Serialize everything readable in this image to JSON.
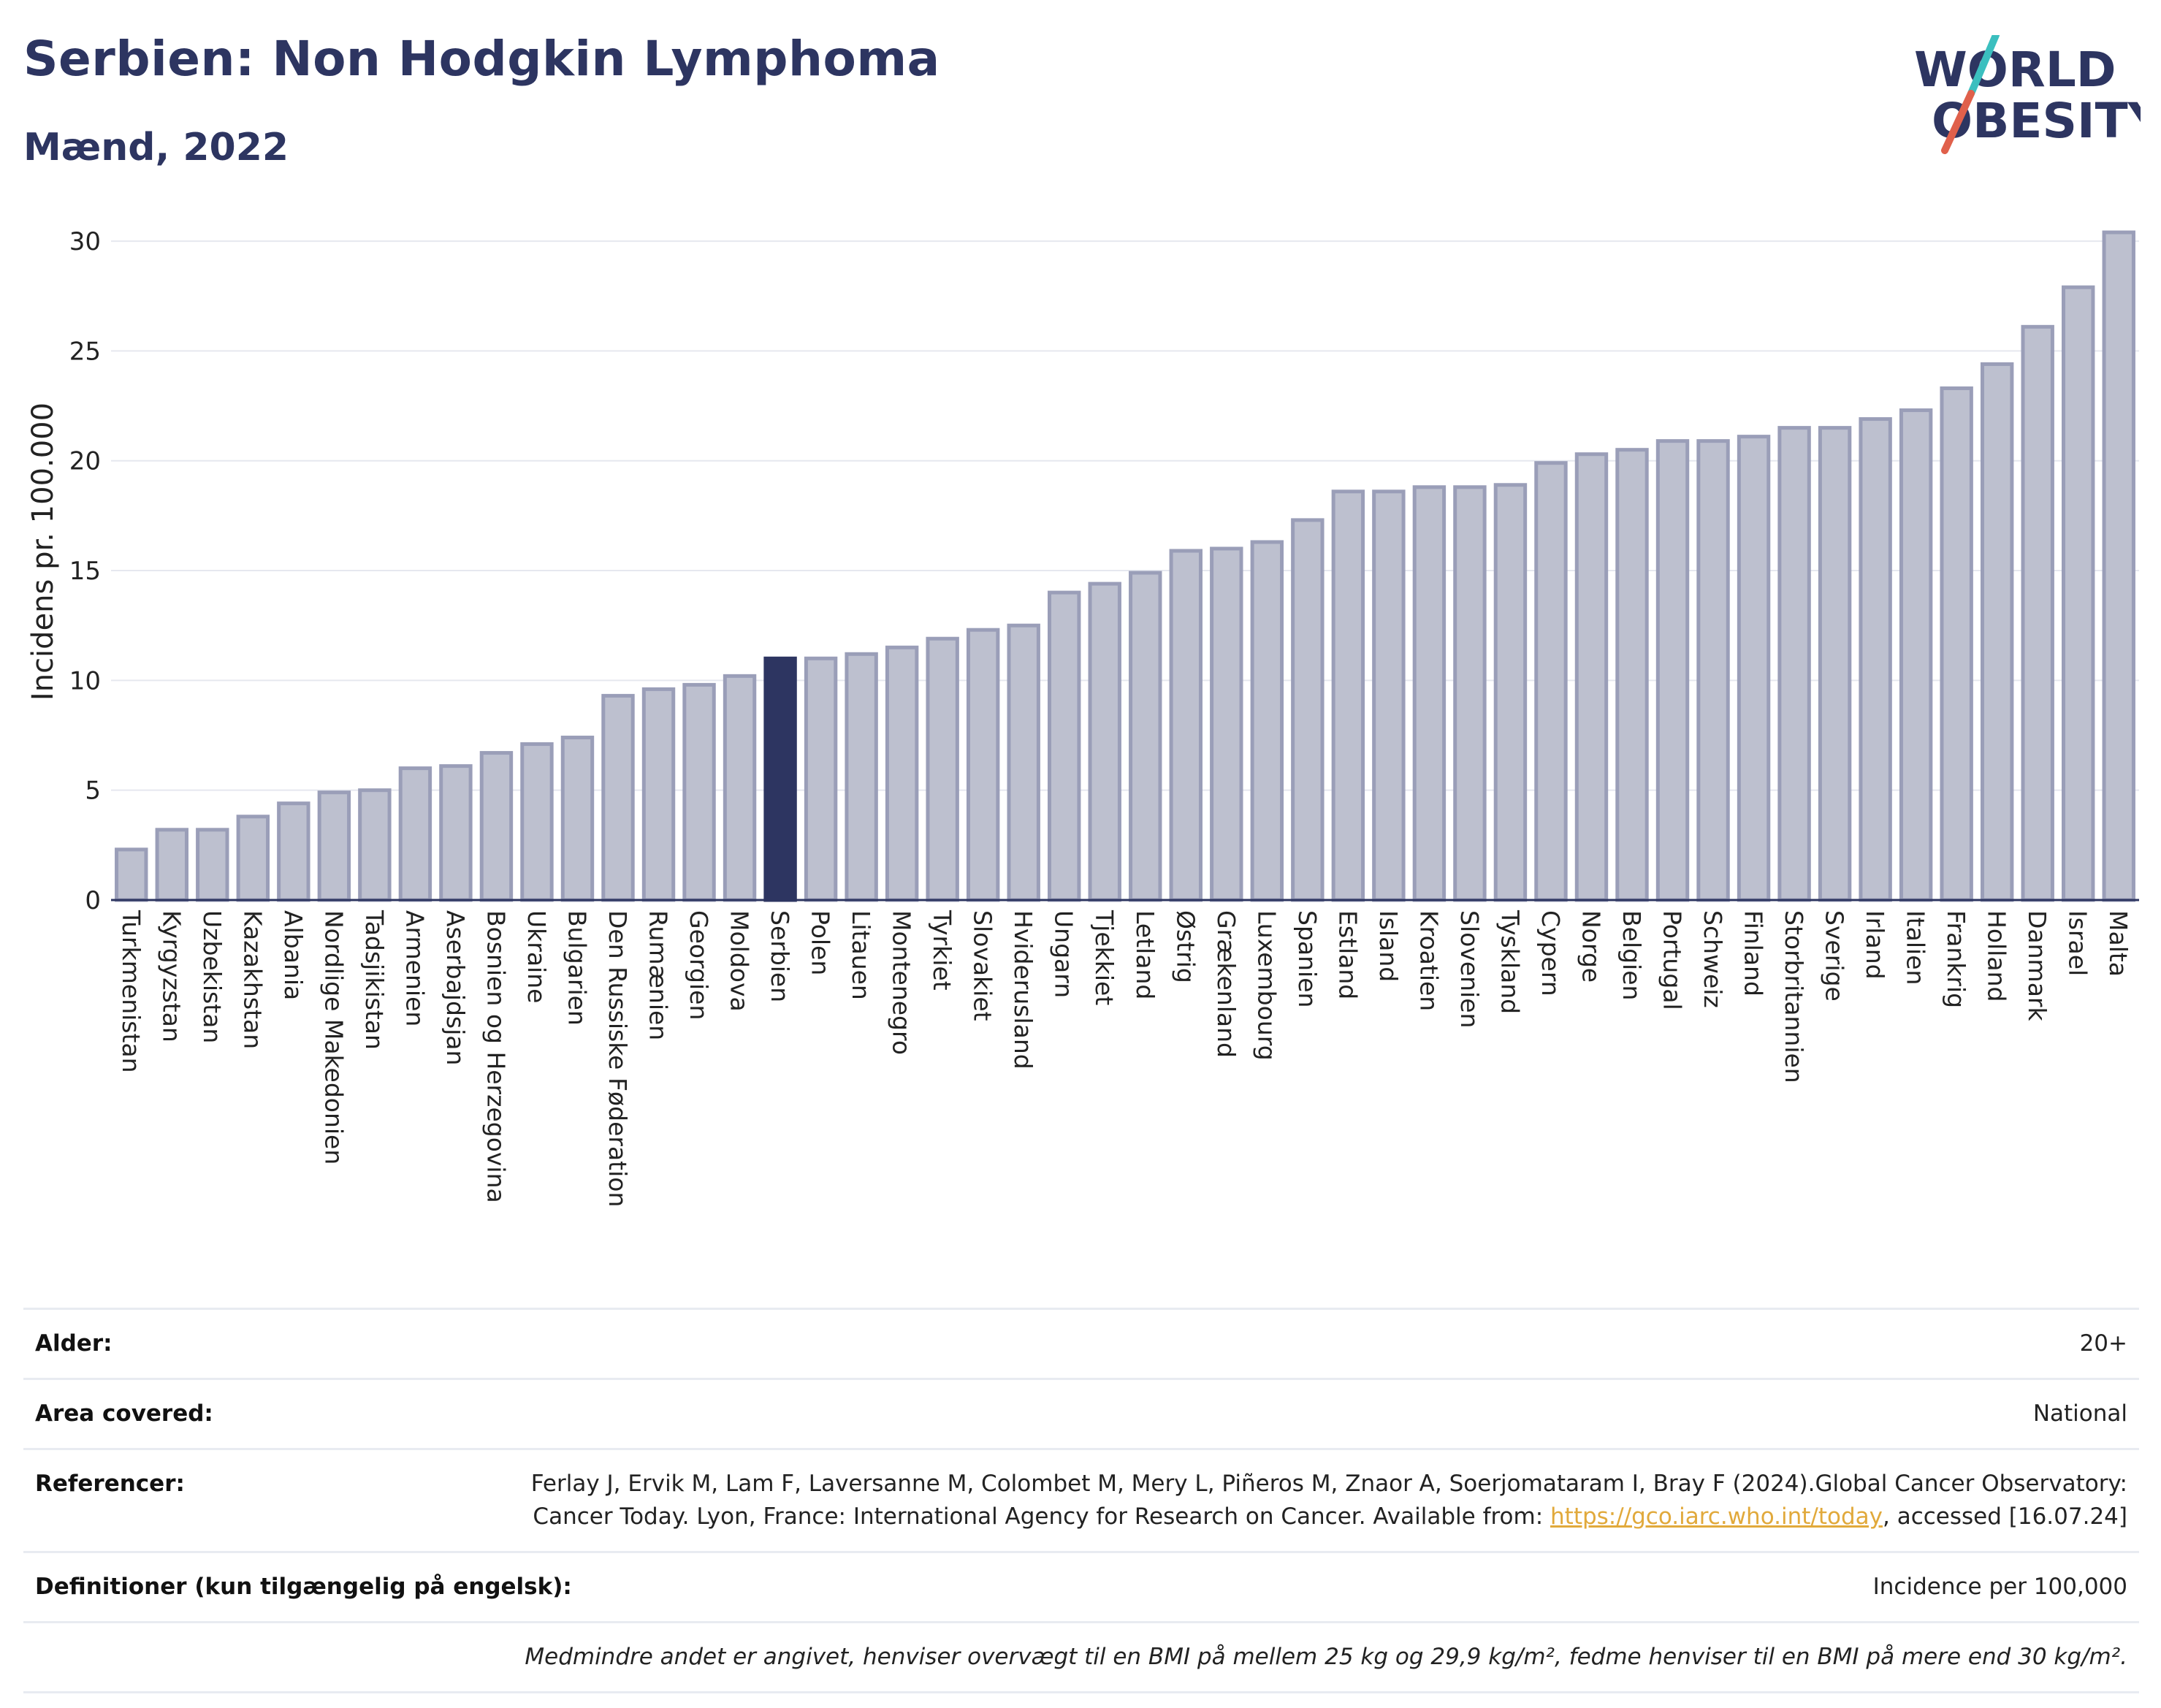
{
  "header": {
    "title": "Serbien: Non Hodgkin Lymphoma",
    "subtitle": "Mænd, 2022"
  },
  "logo": {
    "line1": "WORLD",
    "line2": "OBESITY",
    "colors": {
      "text": "#2d3561",
      "slash_teal": "#3bbfbf",
      "slash_red": "#e0604b"
    }
  },
  "chart_data": {
    "type": "bar",
    "title": "Serbien: Non Hodgkin Lymphoma",
    "subtitle": "Mænd, 2022",
    "xlabel": "",
    "ylabel": "Incidens pr. 100.000",
    "ylim": [
      0,
      31
    ],
    "yticks": [
      0,
      5,
      10,
      15,
      20,
      25,
      30
    ],
    "grid": true,
    "highlight": "Serbien",
    "colors": {
      "bar": "#bdc0cf",
      "bar_border": "#9a9eb8",
      "highlight": "#2d3561"
    },
    "categories": [
      "Turkmenistan",
      "Kyrgyzstan",
      "Uzbekistan",
      "Kazakhstan",
      "Albania",
      "Nordlige Makedonien",
      "Tadsjikistan",
      "Armenien",
      "Aserbajdsjan",
      "Bosnien og Herzegovina",
      "Ukraine",
      "Bulgarien",
      "Den Russiske Føderation",
      "Rumænien",
      "Georgien",
      "Moldova",
      "Serbien",
      "Polen",
      "Litauen",
      "Montenegro",
      "Tyrkiet",
      "Slovakiet",
      "Hviderusland",
      "Ungarn",
      "Tjekkiet",
      "Letland",
      "Østrig",
      "Grækenland",
      "Luxembourg",
      "Spanien",
      "Estland",
      "Island",
      "Kroatien",
      "Slovenien",
      "Tyskland",
      "Cypern",
      "Norge",
      "Belgien",
      "Portugal",
      "Schweiz",
      "Finland",
      "Storbritannien",
      "Sverige",
      "Irland",
      "Italien",
      "Frankrig",
      "Holland",
      "Danmark",
      "Israel",
      "Malta"
    ],
    "values": [
      2.3,
      3.2,
      3.2,
      3.8,
      4.4,
      4.9,
      5.0,
      6.0,
      6.1,
      6.7,
      7.1,
      7.4,
      9.3,
      9.6,
      9.8,
      10.2,
      11.0,
      11.0,
      11.2,
      11.5,
      11.9,
      12.3,
      12.5,
      14.0,
      14.4,
      14.9,
      15.9,
      16.0,
      16.3,
      17.3,
      18.6,
      18.6,
      18.8,
      18.8,
      18.9,
      19.9,
      20.3,
      20.5,
      20.9,
      20.9,
      21.1,
      21.5,
      21.5,
      21.9,
      22.3,
      23.3,
      24.4,
      26.1,
      27.9,
      30.4
    ]
  },
  "info": {
    "age_key": "Alder:",
    "age_val": "20+",
    "area_key": "Area covered:",
    "area_val": "National",
    "ref_key": "Referencer:",
    "ref_text_1": "Ferlay J, Ervik M, Lam F, Laversanne M, Colombet M, Mery L, Piñeros M, Znaor A, Soerjomataram I, Bray F (2024).Global Cancer Observatory: Cancer Today. Lyon, France: International Agency for Research on Cancer. Available from: ",
    "ref_link": "https://gco.iarc.who.int/today",
    "ref_text_2": ", accessed [16.07.24]",
    "def_key": "Definitioner (kun tilgængelig på engelsk):",
    "def_val": "Incidence per 100,000",
    "footnote": "Medmindre andet er angivet, henviser overvægt til en BMI på mellem 25 kg og 29,9 kg/m², fedme henviser til en BMI på mere end 30 kg/m²."
  }
}
